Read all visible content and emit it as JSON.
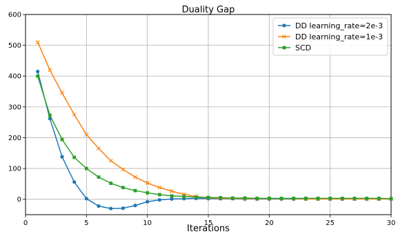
{
  "chart_data": {
    "type": "line",
    "title": "Duality Gap",
    "xlabel": "Iterations",
    "ylabel": "",
    "xlim": [
      0,
      30
    ],
    "ylim": [
      -50,
      600
    ],
    "xticks": [
      0,
      5,
      10,
      15,
      20,
      25,
      30
    ],
    "yticks": [
      0,
      100,
      200,
      300,
      400,
      500,
      600
    ],
    "grid": true,
    "legend_position": "top-right",
    "x": [
      1,
      2,
      3,
      4,
      5,
      6,
      7,
      8,
      9,
      10,
      11,
      12,
      13,
      14,
      15,
      16,
      17,
      18,
      19,
      20,
      21,
      22,
      23,
      24,
      25,
      26,
      27,
      28,
      29,
      30
    ],
    "series": [
      {
        "name": "DD learning_rate=2e-3",
        "color": "#1f77b4",
        "marker": "circle",
        "values": [
          415,
          262,
          138,
          56,
          2,
          -22,
          -30,
          -29,
          -20,
          -8,
          -2,
          1,
          2,
          3,
          2,
          2,
          2,
          1,
          1,
          1,
          1,
          1,
          1,
          1,
          1,
          1,
          1,
          1,
          1,
          1
        ]
      },
      {
        "name": "DD learning_rate=1e-3",
        "color": "#ff7f0e",
        "marker": "x",
        "values": [
          510,
          420,
          345,
          275,
          210,
          165,
          125,
          97,
          72,
          53,
          38,
          26,
          16,
          9,
          5,
          3,
          3,
          2,
          2,
          2,
          2,
          2,
          1,
          1,
          1,
          1,
          1,
          1,
          1,
          1
        ]
      },
      {
        "name": "SCD",
        "color": "#2ca02c",
        "marker": "square",
        "values": [
          400,
          273,
          194,
          136,
          100,
          72,
          52,
          38,
          28,
          21,
          15,
          11,
          9,
          7,
          6,
          5,
          4,
          4,
          3,
          3,
          3,
          3,
          3,
          3,
          3,
          3,
          3,
          3,
          3,
          2
        ]
      }
    ]
  }
}
